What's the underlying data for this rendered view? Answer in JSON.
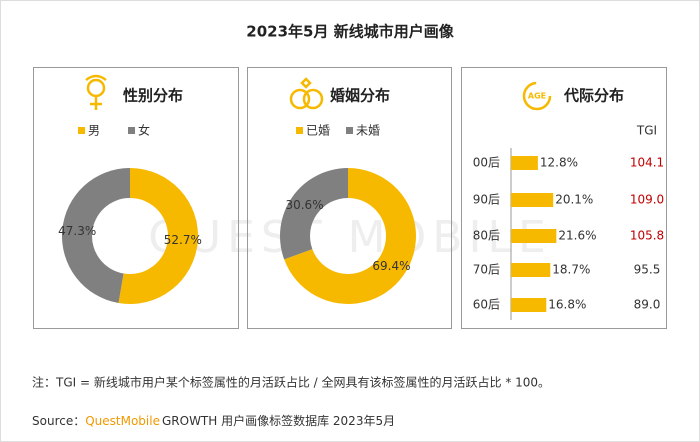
{
  "title": "2023年5月 新线城市用户画像",
  "watermark": "QUEST MOBILE",
  "chart_data": [
    {
      "type": "pie",
      "title": "性别分布",
      "categories": [
        "男",
        "女"
      ],
      "values": [
        52.7,
        47.3
      ],
      "value_labels": [
        "52.7%",
        "47.3%"
      ],
      "colors": [
        "#f7b900",
        "#808080"
      ]
    },
    {
      "type": "pie",
      "title": "婚姻分布",
      "categories": [
        "已婚",
        "未婚"
      ],
      "values": [
        69.4,
        30.6
      ],
      "value_labels": [
        "69.4%",
        "30.6%"
      ],
      "colors": [
        "#f7b900",
        "#808080"
      ]
    },
    {
      "type": "bar",
      "title": "代际分布",
      "categories": [
        "00后",
        "90后",
        "80后",
        "70后",
        "60后"
      ],
      "values": [
        12.8,
        20.1,
        21.6,
        18.7,
        16.8
      ],
      "value_labels": [
        "12.8%",
        "20.1%",
        "21.6%",
        "18.7%",
        "16.8%"
      ],
      "color": "#f7b900",
      "tgi": {
        "label": "TGI",
        "values": [
          104.1,
          109.0,
          105.8,
          95.5,
          89.0
        ],
        "value_labels": [
          "104.1",
          "109.0",
          "105.8",
          "95.5",
          "89.0"
        ],
        "colors": [
          "#c00000",
          "#c00000",
          "#c00000",
          "#333333",
          "#333333"
        ]
      }
    }
  ],
  "note": "注：TGI = 新线城市用户某个标签属性的月活跃占比 / 全网具有该标签属性的月活跃占比 * 100。",
  "source": {
    "label": "Source：",
    "brand": "QuestMobile",
    "text": "GROWTH 用户画像标签数据库 2023年5月"
  }
}
